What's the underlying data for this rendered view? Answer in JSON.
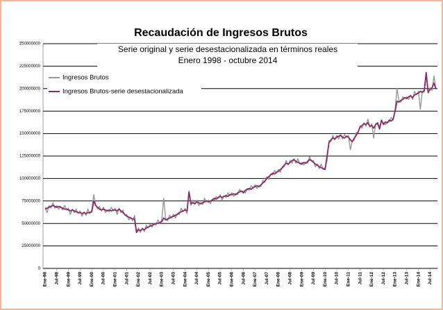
{
  "chart_data": {
    "type": "line",
    "title": "Recaudación de Ingresos Brutos",
    "subtitle": [
      "Serie original y serie desestacionalizada en términos reales",
      "Enero 1998 - octubre 2014"
    ],
    "legend": "upper left",
    "grid": true,
    "ylim": [
      0,
      250000000
    ],
    "yticks": [
      0,
      25000000,
      50000000,
      75000000,
      100000000,
      125000000,
      150000000,
      175000000,
      200000000,
      225000000,
      250000000
    ],
    "categories": [
      "Ene-98",
      null,
      null,
      null,
      null,
      null,
      "Jul-98",
      null,
      null,
      null,
      null,
      null,
      "Ene-99",
      null,
      null,
      null,
      null,
      null,
      "Jul-99",
      null,
      null,
      null,
      null,
      null,
      "Ene-00",
      null,
      null,
      null,
      null,
      null,
      "Jul-00",
      null,
      null,
      null,
      null,
      null,
      "Ene-01",
      null,
      null,
      null,
      null,
      null,
      "Jul-01",
      null,
      null,
      null,
      null,
      null,
      "Ene-02",
      null,
      null,
      null,
      null,
      null,
      "Jul-02",
      null,
      null,
      null,
      null,
      null,
      "Ene-03",
      null,
      null,
      null,
      null,
      null,
      "Jul-03",
      null,
      null,
      null,
      null,
      null,
      "Ene-04",
      null,
      null,
      null,
      null,
      null,
      "Jul-04",
      null,
      null,
      null,
      null,
      null,
      "Ene-05",
      null,
      null,
      null,
      null,
      null,
      "Jul-05",
      null,
      null,
      null,
      null,
      null,
      "Ene-06",
      null,
      null,
      null,
      null,
      null,
      "Jul-06",
      null,
      null,
      null,
      null,
      null,
      "Ene-07",
      null,
      null,
      null,
      null,
      null,
      "Jul-07",
      null,
      null,
      null,
      null,
      null,
      "Ene-08",
      null,
      null,
      null,
      null,
      null,
      "Jul-08",
      null,
      null,
      null,
      null,
      null,
      "Ene-09",
      null,
      null,
      null,
      null,
      null,
      "Jul-09",
      null,
      null,
      null,
      null,
      null,
      "Ene-10",
      null,
      null,
      null,
      null,
      null,
      "Jul-10",
      null,
      null,
      null,
      null,
      null,
      "Ene-11",
      null,
      null,
      null,
      null,
      null,
      "Jul-11",
      null,
      null,
      null,
      null,
      null,
      "Ene-12",
      null,
      null,
      null,
      null,
      null,
      "Jul-12",
      null,
      null,
      null,
      null,
      null,
      "Ene-13",
      null,
      null,
      null,
      null,
      null,
      "Jul-13",
      null,
      null,
      null,
      null,
      null,
      "Ene-14",
      null,
      null,
      null,
      null,
      null,
      "Jul-14",
      null,
      null,
      null
    ],
    "series": [
      {
        "name": "Ingresos Brutos",
        "color": "#959595",
        "values": [
          68000000,
          62000000,
          70000000,
          67000000,
          73000000,
          67000000,
          70000000,
          66000000,
          69000000,
          65000000,
          70000000,
          65000000,
          67000000,
          60000000,
          66000000,
          62000000,
          66000000,
          61000000,
          64000000,
          58000000,
          63000000,
          59000000,
          66000000,
          61000000,
          65000000,
          82000000,
          71000000,
          66000000,
          69000000,
          64000000,
          68000000,
          62000000,
          65000000,
          63000000,
          68000000,
          64000000,
          67000000,
          60000000,
          67000000,
          62000000,
          65000000,
          59000000,
          60000000,
          54000000,
          57000000,
          53000000,
          59000000,
          41000000,
          45000000,
          40000000,
          45000000,
          41000000,
          48000000,
          45000000,
          49000000,
          46000000,
          50000000,
          48000000,
          54000000,
          50000000,
          54000000,
          78000000,
          55000000,
          53000000,
          59000000,
          56000000,
          60000000,
          56000000,
          61000000,
          60000000,
          67000000,
          63000000,
          67000000,
          61000000,
          86000000,
          70000000,
          76000000,
          71000000,
          76000000,
          70000000,
          73000000,
          71000000,
          78000000,
          74000000,
          76000000,
          72000000,
          77000000,
          76000000,
          80000000,
          78000000,
          82000000,
          76000000,
          81000000,
          79000000,
          84000000,
          81000000,
          84000000,
          80000000,
          83000000,
          82000000,
          88000000,
          85000000,
          86000000,
          84000000,
          89000000,
          87000000,
          92000000,
          89000000,
          93000000,
          89000000,
          92000000,
          91000000,
          98000000,
          96000000,
          102000000,
          99000000,
          105000000,
          104000000,
          109000000,
          106000000,
          110000000,
          107000000,
          113000000,
          113000000,
          120000000,
          115000000,
          120000000,
          117000000,
          122000000,
          117000000,
          122000000,
          116000000,
          118000000,
          115000000,
          118000000,
          117000000,
          124000000,
          119000000,
          120000000,
          113000000,
          116000000,
          111000000,
          116000000,
          110000000,
          112000000,
          120000000,
          142000000,
          141000000,
          148000000,
          143000000,
          148000000,
          144000000,
          149000000,
          144000000,
          149000000,
          146000000,
          148000000,
          132000000,
          142000000,
          143000000,
          151000000,
          151000000,
          159000000,
          156000000,
          162000000,
          158000000,
          166000000,
          157000000,
          161000000,
          145000000,
          161000000,
          160000000,
          158000000,
          164000000,
          162000000,
          160000000,
          163000000,
          163000000,
          168000000,
          165000000,
          177000000,
          200000000,
          186000000,
          185000000,
          191000000,
          189000000,
          191000000,
          188000000,
          193000000,
          188000000,
          197000000,
          193000000,
          197000000,
          177000000,
          197000000,
          196000000,
          215000000,
          195000000,
          201000000,
          198000000,
          214000000,
          199000000
        ]
      },
      {
        "name": "Ingresos Brutos-serie desestacionalizada",
        "color": "#8b2a5e",
        "values": [
          66000000,
          67000000,
          68000000,
          69000000,
          70000000,
          69000000,
          68000000,
          69000000,
          68000000,
          67000000,
          66000000,
          66000000,
          65000000,
          64000000,
          65000000,
          64000000,
          63000000,
          62000000,
          62000000,
          61000000,
          62000000,
          61000000,
          62000000,
          62000000,
          63000000,
          75000000,
          70000000,
          68000000,
          66000000,
          65000000,
          66000000,
          65000000,
          64000000,
          65000000,
          64000000,
          65000000,
          65000000,
          64000000,
          66000000,
          64000000,
          62000000,
          60000000,
          58000000,
          57000000,
          56000000,
          55000000,
          55000000,
          40000000,
          43000000,
          42000000,
          44000000,
          43000000,
          45000000,
          46000000,
          47000000,
          48000000,
          49000000,
          50000000,
          50000000,
          51000000,
          52000000,
          56000000,
          54000000,
          55000000,
          56000000,
          57000000,
          58000000,
          59000000,
          60000000,
          62000000,
          63000000,
          64000000,
          65000000,
          64000000,
          85000000,
          72000000,
          73000000,
          72000000,
          74000000,
          73000000,
          72000000,
          73000000,
          74000000,
          75000000,
          74000000,
          75000000,
          76000000,
          78000000,
          77000000,
          79000000,
          80000000,
          79000000,
          80000000,
          81000000,
          80000000,
          82000000,
          82000000,
          83000000,
          82000000,
          84000000,
          85000000,
          86000000,
          84000000,
          87000000,
          88000000,
          89000000,
          88000000,
          90000000,
          91000000,
          92000000,
          91000000,
          93000000,
          95000000,
          97000000,
          100000000,
          102000000,
          104000000,
          106000000,
          105000000,
          107000000,
          108000000,
          110000000,
          112000000,
          115000000,
          117000000,
          116000000,
          118000000,
          120000000,
          121000000,
          119000000,
          118000000,
          117000000,
          116000000,
          118000000,
          117000000,
          119000000,
          121000000,
          120000000,
          118000000,
          116000000,
          115000000,
          113000000,
          112000000,
          111000000,
          110000000,
          125000000,
          140000000,
          143000000,
          145000000,
          144000000,
          146000000,
          147000000,
          148000000,
          146000000,
          145000000,
          147000000,
          146000000,
          143000000,
          141000000,
          145000000,
          148000000,
          152000000,
          157000000,
          159000000,
          161000000,
          160000000,
          162000000,
          158000000,
          159000000,
          156000000,
          160000000,
          162000000,
          155000000,
          165000000,
          160000000,
          163000000,
          162000000,
          165000000,
          164000000,
          166000000,
          175000000,
          186000000,
          185000000,
          187000000,
          188000000,
          190000000,
          189000000,
          191000000,
          192000000,
          190000000,
          193000000,
          194000000,
          195000000,
          197000000,
          196000000,
          198000000,
          218000000,
          196000000,
          199000000,
          201000000,
          206000000,
          200000000
        ]
      }
    ]
  }
}
